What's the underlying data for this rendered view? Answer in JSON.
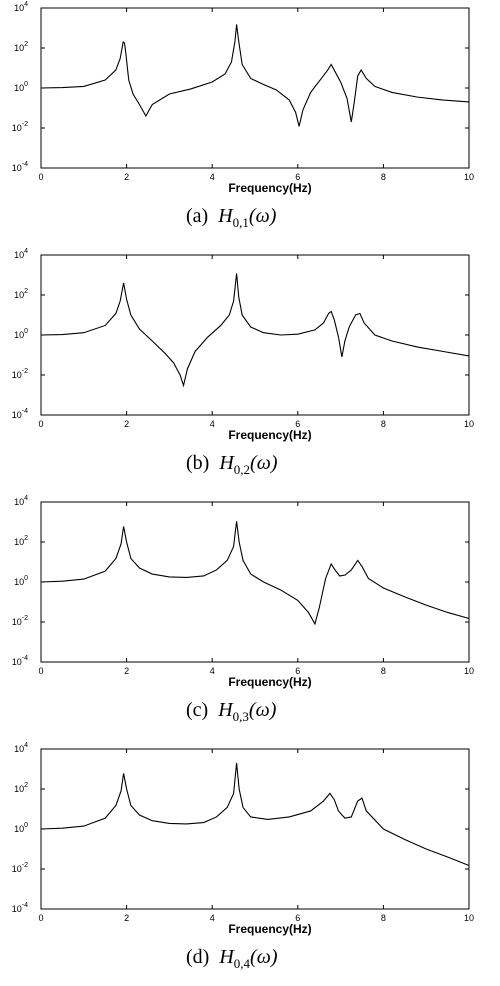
{
  "chart_data": [
    {
      "type": "line",
      "xlabel": "Frequency(Hz)",
      "caption": {
        "prefix": "(a)",
        "symbol": "H",
        "subscript": "0,1",
        "argument": "(ω)"
      },
      "xlim": [
        0,
        10
      ],
      "ylim": [
        0.0001,
        10000
      ],
      "yscale": "log",
      "xticks": [
        0,
        2,
        4,
        6,
        8,
        10
      ],
      "yticks": [
        {
          "base": "10",
          "exp": "-4"
        },
        {
          "base": "10",
          "exp": "-2"
        },
        {
          "base": "10",
          "exp": "0"
        },
        {
          "base": "10",
          "exp": "2"
        },
        {
          "base": "10",
          "exp": "4"
        }
      ],
      "series": [
        {
          "x": [
            0,
            0.5,
            1.0,
            1.5,
            1.75,
            1.85,
            1.92,
            1.95,
            1.98,
            2.05,
            2.15,
            2.3,
            2.45,
            2.6,
            3.0,
            3.5,
            4.0,
            4.3,
            4.45,
            4.53,
            4.57,
            4.61,
            4.7,
            4.9,
            5.2,
            5.5,
            5.8,
            5.95,
            6.03,
            6.12,
            6.3,
            6.55,
            6.7,
            6.78,
            6.85,
            7.0,
            7.15,
            7.25,
            7.32,
            7.4,
            7.48,
            7.6,
            7.8,
            8.2,
            8.8,
            9.4,
            10.0
          ],
          "y": [
            1.0,
            1.05,
            1.2,
            2.5,
            8,
            30,
            200,
            180,
            60,
            2.5,
            0.5,
            0.15,
            0.04,
            0.15,
            0.5,
            0.9,
            2,
            5,
            20,
            200,
            1500,
            300,
            15,
            3,
            1.5,
            0.8,
            0.25,
            0.06,
            0.012,
            0.08,
            0.6,
            3,
            8,
            15,
            8,
            2,
            0.3,
            0.02,
            0.2,
            4,
            8,
            3,
            1.2,
            0.6,
            0.35,
            0.25,
            0.2
          ]
        }
      ]
    },
    {
      "type": "line",
      "xlabel": "Frequency(Hz)",
      "caption": {
        "prefix": "(b)",
        "symbol": "H",
        "subscript": "0,2",
        "argument": "(ω)"
      },
      "xlim": [
        0,
        10
      ],
      "ylim": [
        0.0001,
        10000
      ],
      "yscale": "log",
      "xticks": [
        0,
        2,
        4,
        6,
        8,
        10
      ],
      "yticks": [
        {
          "base": "10",
          "exp": "-4"
        },
        {
          "base": "10",
          "exp": "-2"
        },
        {
          "base": "10",
          "exp": "0"
        },
        {
          "base": "10",
          "exp": "2"
        },
        {
          "base": "10",
          "exp": "4"
        }
      ],
      "series": [
        {
          "x": [
            0,
            0.5,
            1.0,
            1.5,
            1.75,
            1.85,
            1.93,
            2.0,
            2.1,
            2.3,
            2.6,
            2.9,
            3.1,
            3.25,
            3.33,
            3.42,
            3.6,
            3.9,
            4.2,
            4.4,
            4.5,
            4.57,
            4.62,
            4.7,
            4.9,
            5.2,
            5.6,
            6.0,
            6.4,
            6.6,
            6.72,
            6.78,
            6.85,
            6.95,
            7.03,
            7.1,
            7.2,
            7.35,
            7.45,
            7.55,
            7.8,
            8.2,
            8.8,
            9.4,
            10.0
          ],
          "y": [
            1.0,
            1.05,
            1.3,
            3,
            12,
            50,
            400,
            60,
            10,
            2,
            0.5,
            0.12,
            0.04,
            0.01,
            0.003,
            0.02,
            0.15,
            0.8,
            3,
            10,
            50,
            1200,
            80,
            10,
            2.5,
            1.3,
            1.0,
            1.1,
            1.8,
            4,
            12,
            15,
            6,
            0.8,
            0.08,
            0.5,
            2.5,
            10,
            12,
            4,
            1.0,
            0.5,
            0.25,
            0.15,
            0.09
          ]
        }
      ]
    },
    {
      "type": "line",
      "xlabel": "Frequency(Hz)",
      "caption": {
        "prefix": "(c)",
        "symbol": "H",
        "subscript": "0,3",
        "argument": "(ω)"
      },
      "xlim": [
        0,
        10
      ],
      "ylim": [
        0.0001,
        10000
      ],
      "yscale": "log",
      "xticks": [
        0,
        2,
        4,
        6,
        8,
        10
      ],
      "yticks": [
        {
          "base": "10",
          "exp": "-4"
        },
        {
          "base": "10",
          "exp": "-2"
        },
        {
          "base": "10",
          "exp": "0"
        },
        {
          "base": "10",
          "exp": "2"
        },
        {
          "base": "10",
          "exp": "4"
        }
      ],
      "series": [
        {
          "x": [
            0,
            0.5,
            1.0,
            1.5,
            1.75,
            1.87,
            1.93,
            2.0,
            2.1,
            2.3,
            2.6,
            3.0,
            3.4,
            3.8,
            4.1,
            4.35,
            4.5,
            4.57,
            4.63,
            4.72,
            4.9,
            5.2,
            5.6,
            6.0,
            6.25,
            6.4,
            6.5,
            6.65,
            6.78,
            6.87,
            6.98,
            7.1,
            7.25,
            7.4,
            7.5,
            7.65,
            8.0,
            8.5,
            9.0,
            9.5,
            10.0
          ],
          "y": [
            1.0,
            1.1,
            1.4,
            3.5,
            15,
            80,
            600,
            100,
            15,
            5,
            2.5,
            1.8,
            1.7,
            2.0,
            4,
            12,
            60,
            1100,
            100,
            12,
            2.5,
            1.0,
            0.4,
            0.12,
            0.03,
            0.008,
            0.05,
            1.5,
            8,
            4,
            2,
            2.2,
            4,
            12,
            6,
            1.5,
            0.5,
            0.18,
            0.07,
            0.03,
            0.015
          ]
        }
      ]
    },
    {
      "type": "line",
      "xlabel": "Frequency(Hz)",
      "caption": {
        "prefix": "(d)",
        "symbol": "H",
        "subscript": "0,4",
        "argument": "(ω)"
      },
      "xlim": [
        0,
        10
      ],
      "ylim": [
        0.0001,
        10000
      ],
      "yscale": "log",
      "xticks": [
        0,
        2,
        4,
        6,
        8,
        10
      ],
      "yticks": [
        {
          "base": "10",
          "exp": "-4"
        },
        {
          "base": "10",
          "exp": "-2"
        },
        {
          "base": "10",
          "exp": "0"
        },
        {
          "base": "10",
          "exp": "2"
        },
        {
          "base": "10",
          "exp": "4"
        }
      ],
      "series": [
        {
          "x": [
            0,
            0.5,
            1.0,
            1.5,
            1.75,
            1.87,
            1.93,
            2.0,
            2.1,
            2.3,
            2.6,
            3.0,
            3.4,
            3.8,
            4.1,
            4.35,
            4.5,
            4.57,
            4.63,
            4.72,
            4.9,
            5.3,
            5.8,
            6.3,
            6.6,
            6.75,
            6.85,
            6.95,
            7.1,
            7.25,
            7.4,
            7.5,
            7.6,
            8.0,
            8.5,
            9.0,
            9.5,
            10.0
          ],
          "y": [
            1.0,
            1.1,
            1.4,
            3.5,
            15,
            80,
            600,
            100,
            15,
            5,
            2.6,
            1.9,
            1.8,
            2.1,
            4,
            12,
            60,
            2000,
            100,
            12,
            4,
            3,
            4,
            8,
            25,
            60,
            30,
            8,
            3.5,
            4,
            25,
            35,
            8,
            1.0,
            0.3,
            0.1,
            0.04,
            0.015
          ]
        }
      ]
    }
  ]
}
